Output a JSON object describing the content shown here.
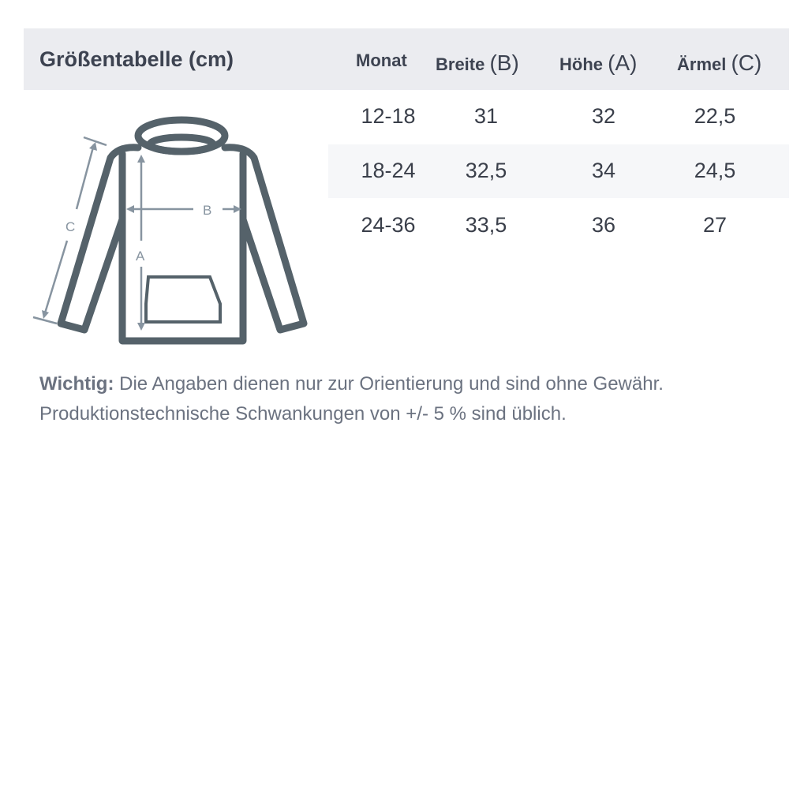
{
  "title": "Größentabelle (cm)",
  "columns": [
    {
      "label": "Monat",
      "letter": ""
    },
    {
      "label": "Breite ",
      "letter": "(B)"
    },
    {
      "label": "Höhe ",
      "letter": "(A)"
    },
    {
      "label": "Ärmel ",
      "letter": "(C)"
    }
  ],
  "rows": [
    [
      "12-18",
      "31",
      "32",
      "22,5"
    ],
    [
      "18-24",
      "32,5",
      "34",
      "24,5"
    ],
    [
      "24-36",
      "33,5",
      "36",
      "27"
    ]
  ],
  "diagram": {
    "label_a": "A",
    "label_b": "B",
    "label_c": "C",
    "line_color": "#55626a",
    "arrow_color": "#8794a0"
  },
  "note": {
    "bold": "Wichtig:",
    "line1": " Die Angaben dienen nur zur Orientierung und sind ohne Gewähr.",
    "line2": "Produktionstechnische Schwankungen von +/- 5 % sind üblich."
  }
}
